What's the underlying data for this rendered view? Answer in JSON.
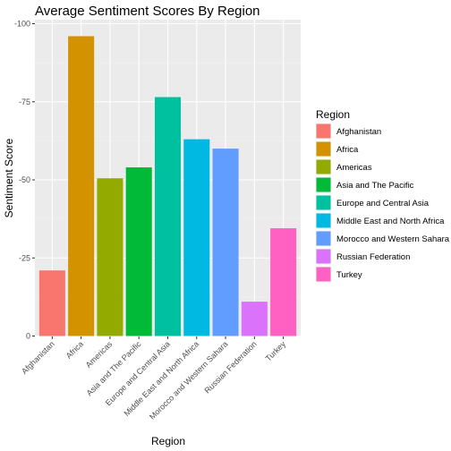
{
  "chart_data": {
    "type": "bar",
    "title": "Average Sentiment Scores By Region",
    "xlabel": "Region",
    "ylabel": "Sentiment Score",
    "categories": [
      "Afghanistan",
      "Africa",
      "Americas",
      "Asia and The Pacific",
      "Europe and Central Asia",
      "Middle East and North Africa",
      "Morocco and Western Sahara",
      "Russian Federation",
      "Turkey"
    ],
    "values": [
      -21,
      -96,
      -50.5,
      -54,
      -76.5,
      -63,
      -60,
      -11,
      -34.5
    ],
    "colors": [
      "#F8766D",
      "#D39200",
      "#93AA00",
      "#00BA38",
      "#00C19F",
      "#00B9E3",
      "#619CFF",
      "#DB72FB",
      "#FF61C3"
    ],
    "ylim": [
      0,
      -100
    ],
    "y_reversed": true,
    "yticks": [
      0,
      -25,
      -50,
      -75,
      -100
    ],
    "ytick_labels": [
      "0",
      "-25",
      "-50",
      "-75",
      "-100"
    ],
    "grid": true,
    "panel_background": "#EBEBEB",
    "legend": {
      "title": "Region",
      "position": "right",
      "entries": [
        "Afghanistan",
        "Africa",
        "Americas",
        "Asia and The Pacific",
        "Europe and Central Asia",
        "Middle East and North Africa",
        "Morocco and Western Sahara",
        "Russian Federation",
        "Turkey"
      ]
    }
  }
}
